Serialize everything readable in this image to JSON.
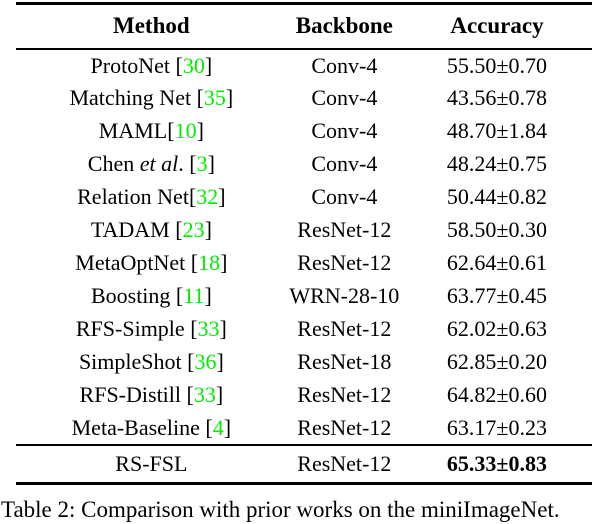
{
  "colors": {
    "citation_green": "#00ee00",
    "text": "#000000",
    "rule": "#000000"
  },
  "header": {
    "method": "Method",
    "backbone": "Backbone",
    "accuracy": "Accuracy"
  },
  "rows": [
    {
      "method": "ProtoNet",
      "method_italic": "",
      "method_tail": "",
      "cite_open": " [",
      "cite": "30",
      "cite_close": "]",
      "backbone": "Conv-4",
      "accuracy": "55.50±0.70",
      "accuracy_bold": false
    },
    {
      "method": "Matching Net",
      "method_italic": "",
      "method_tail": "",
      "cite_open": " [",
      "cite": "35",
      "cite_close": "]",
      "backbone": "Conv-4",
      "accuracy": "43.56±0.78",
      "accuracy_bold": false
    },
    {
      "method": "MAML",
      "method_italic": "",
      "method_tail": "",
      "cite_open": "[",
      "cite": "10",
      "cite_close": "]",
      "backbone": "Conv-4",
      "accuracy": "48.70±1.84",
      "accuracy_bold": false
    },
    {
      "method": "Chen ",
      "method_italic": "et al",
      "method_tail": ".",
      "cite_open": " [",
      "cite": "3",
      "cite_close": "]",
      "backbone": "Conv-4",
      "accuracy": "48.24±0.75",
      "accuracy_bold": false
    },
    {
      "method": "Relation Net",
      "method_italic": "",
      "method_tail": "",
      "cite_open": "[",
      "cite": "32",
      "cite_close": "]",
      "backbone": "Conv-4",
      "accuracy": "50.44±0.82",
      "accuracy_bold": false
    },
    {
      "method": "TADAM",
      "method_italic": "",
      "method_tail": "",
      "cite_open": " [",
      "cite": "23",
      "cite_close": "]",
      "backbone": "ResNet-12",
      "accuracy": "58.50±0.30",
      "accuracy_bold": false
    },
    {
      "method": "MetaOptNet",
      "method_italic": "",
      "method_tail": "",
      "cite_open": " [",
      "cite": "18",
      "cite_close": "]",
      "backbone": "ResNet-12",
      "accuracy": "62.64±0.61",
      "accuracy_bold": false
    },
    {
      "method": "Boosting",
      "method_italic": "",
      "method_tail": "",
      "cite_open": " [",
      "cite": "11",
      "cite_close": "]",
      "backbone": "WRN-28-10",
      "accuracy": "63.77±0.45",
      "accuracy_bold": false
    },
    {
      "method": "RFS-Simple",
      "method_italic": "",
      "method_tail": "",
      "cite_open": " [",
      "cite": "33",
      "cite_close": "]",
      "backbone": "ResNet-12",
      "accuracy": "62.02±0.63",
      "accuracy_bold": false
    },
    {
      "method": "SimpleShot",
      "method_italic": "",
      "method_tail": "",
      "cite_open": " [",
      "cite": "36",
      "cite_close": "]",
      "backbone": "ResNet-18",
      "accuracy": "62.85±0.20",
      "accuracy_bold": false
    },
    {
      "method": "RFS-Distill",
      "method_italic": "",
      "method_tail": "",
      "cite_open": " [",
      "cite": "33",
      "cite_close": "]",
      "backbone": "ResNet-12",
      "accuracy": "64.82±0.60",
      "accuracy_bold": false
    },
    {
      "method": "Meta-Baseline",
      "method_italic": "",
      "method_tail": "",
      "cite_open": " [",
      "cite": "4",
      "cite_close": "]",
      "backbone": "ResNet-12",
      "accuracy": "63.17±0.23",
      "accuracy_bold": false
    },
    {
      "method": "RS-FSL",
      "method_italic": "",
      "method_tail": "",
      "cite_open": "",
      "cite": "",
      "cite_close": "",
      "backbone": "ResNet-12",
      "accuracy": "65.33±0.83",
      "accuracy_bold": true
    }
  ],
  "caption": "Table 2: Comparison with prior works on the miniImageNet."
}
